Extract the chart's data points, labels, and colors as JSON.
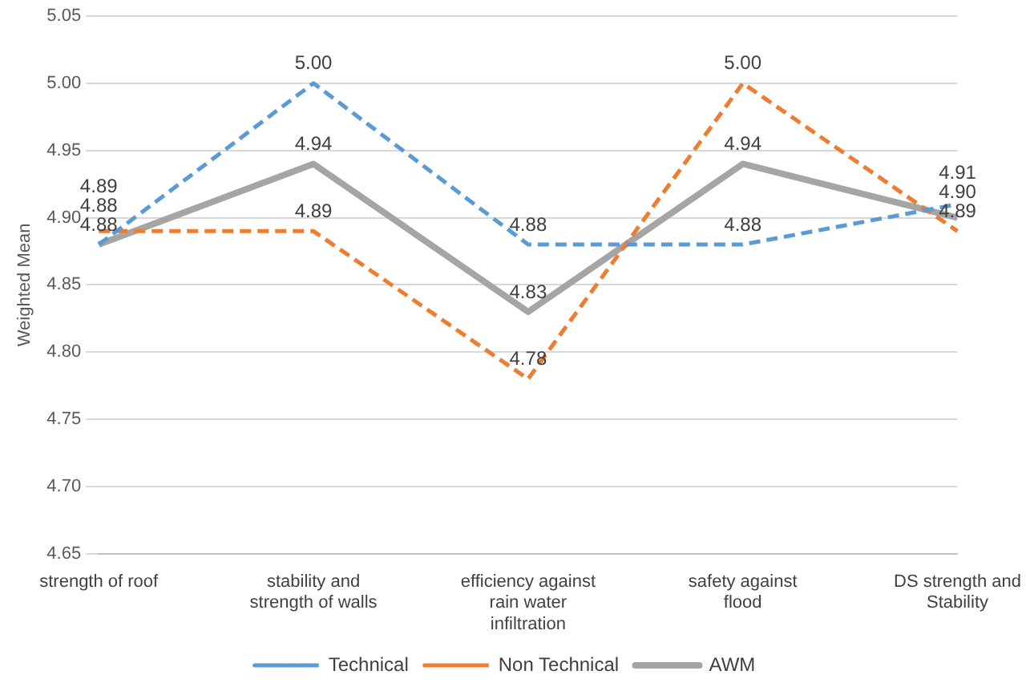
{
  "chart_data": {
    "type": "line",
    "ylabel": "Weighted Mean",
    "categories": [
      "strength of roof",
      "stability and strength of walls",
      "efficiency against rain water infiltration",
      "safety against flood",
      "DS strength and Stability"
    ],
    "series": [
      {
        "name": "Technical",
        "color": "#5b9bd5",
        "line_style": "dashed",
        "values": [
          4.88,
          5.0,
          4.88,
          4.88,
          4.91
        ],
        "value_labels": [
          "4.88",
          "5.00",
          "4.88",
          "4.88",
          "4.91"
        ]
      },
      {
        "name": "Non Technical",
        "color": "#ed7d31",
        "line_style": "dashed",
        "values": [
          4.89,
          4.89,
          4.78,
          5.0,
          4.89
        ],
        "value_labels": [
          "4.89",
          "4.89",
          "4.78",
          "5.00",
          "4.89"
        ]
      },
      {
        "name": "AWM",
        "color": "#a5a5a5",
        "line_style": "solid",
        "values": [
          4.88,
          4.94,
          4.83,
          4.94,
          4.9
        ],
        "value_labels": [
          "4.88",
          "4.94",
          "4.83",
          "4.94",
          "4.90"
        ]
      }
    ],
    "ylim": [
      4.65,
      5.05
    ],
    "yticks": [
      {
        "value": 4.65,
        "label": "4.65"
      },
      {
        "value": 4.7,
        "label": "4.70"
      },
      {
        "value": 4.75,
        "label": "4.75"
      },
      {
        "value": 4.8,
        "label": "4.80"
      },
      {
        "value": 4.85,
        "label": "4.85"
      },
      {
        "value": 4.9,
        "label": "4.90"
      },
      {
        "value": 4.95,
        "label": "4.95"
      },
      {
        "value": 5.0,
        "label": "5.00"
      },
      {
        "value": 5.05,
        "label": "5.05"
      }
    ],
    "grid": "y",
    "legend": "bottom",
    "marker": "none"
  }
}
